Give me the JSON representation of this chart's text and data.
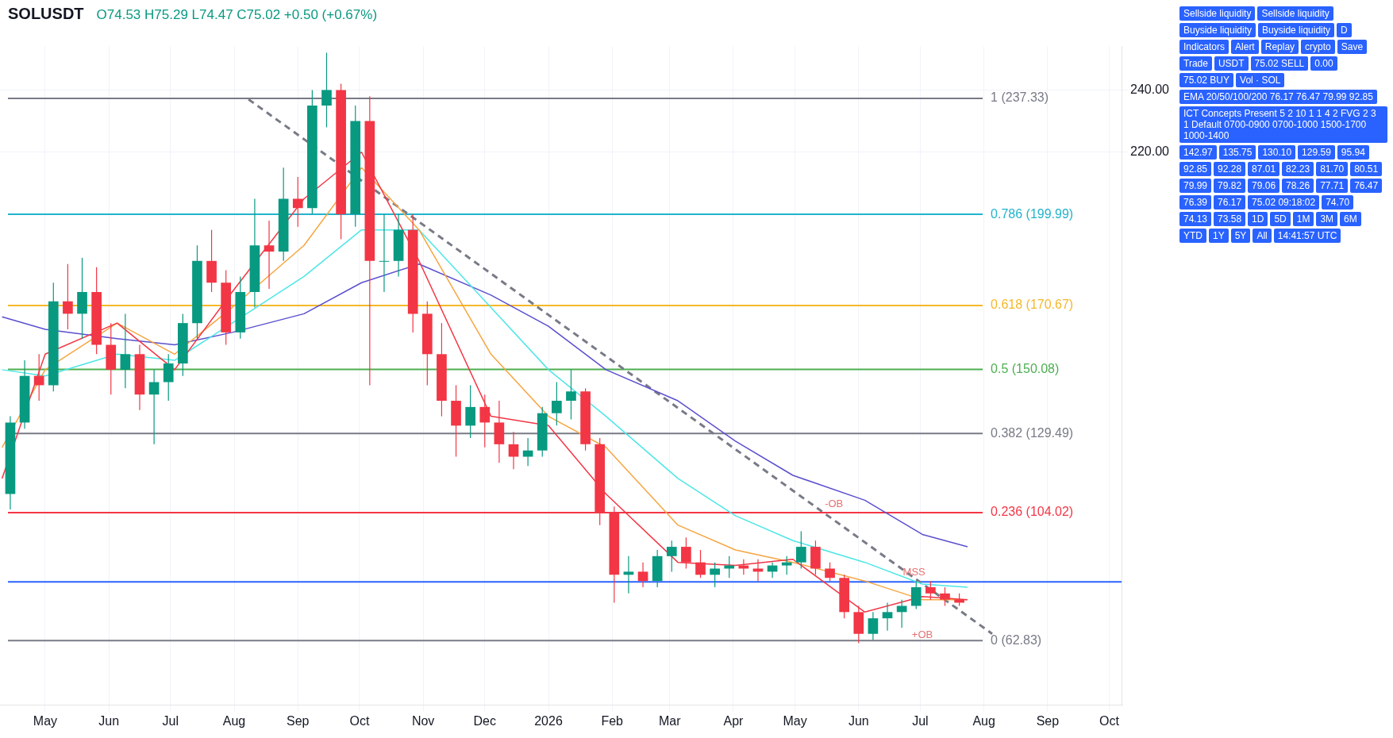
{
  "chart_data": {
    "type": "candlestick",
    "title": "SOLUSDT",
    "subtitle": "O74.53 H75.29 L74.47 C75.02 +0.50 (+0.67%)",
    "x": [
      "2025-04-14",
      "2025-04-21",
      "2025-04-28",
      "2025-05-05",
      "2025-05-12",
      "2025-05-19",
      "2025-05-26",
      "2025-06-02",
      "2025-06-09",
      "2025-06-16",
      "2025-06-23",
      "2025-06-30",
      "2025-07-07",
      "2025-07-14",
      "2025-07-21",
      "2025-07-28",
      "2025-08-04",
      "2025-08-11",
      "2025-08-18",
      "2025-08-25",
      "2025-09-01",
      "2025-09-08",
      "2025-09-15",
      "2025-09-22",
      "2025-09-29",
      "2025-10-06",
      "2025-10-13",
      "2025-10-20",
      "2025-10-27",
      "2025-11-03",
      "2025-11-10",
      "2025-11-17",
      "2025-11-24",
      "2025-12-01",
      "2025-12-08",
      "2025-12-15",
      "2025-12-22",
      "2025-12-29",
      "2026-01-05",
      "2026-01-12",
      "2026-01-19",
      "2026-01-26",
      "2026-02-02",
      "2026-02-09",
      "2026-02-16",
      "2026-02-23",
      "2026-03-02",
      "2026-03-09",
      "2026-03-16",
      "2026-03-23",
      "2026-03-30",
      "2026-04-06",
      "2026-04-13",
      "2026-04-20",
      "2026-04-27",
      "2026-05-04",
      "2026-05-11",
      "2026-05-18",
      "2026-05-25",
      "2026-06-01",
      "2026-06-08",
      "2026-06-15",
      "2026-06-22",
      "2026-06-29",
      "2026-07-06",
      "2026-07-13",
      "2026-07-20"
    ],
    "ohlc": [
      [
        110,
        135,
        105,
        133
      ],
      [
        133,
        153,
        131,
        148
      ],
      [
        148,
        155,
        140,
        145
      ],
      [
        145,
        178,
        143,
        172
      ],
      [
        172,
        184,
        163,
        168
      ],
      [
        168,
        186,
        160,
        175
      ],
      [
        175,
        183,
        155,
        158
      ],
      [
        158,
        165,
        142,
        150
      ],
      [
        150,
        168,
        144,
        155
      ],
      [
        155,
        158,
        137,
        142
      ],
      [
        142,
        150,
        126,
        146
      ],
      [
        146,
        155,
        140,
        152
      ],
      [
        152,
        168,
        148,
        165
      ],
      [
        165,
        190,
        160,
        185
      ],
      [
        185,
        195,
        175,
        178
      ],
      [
        178,
        182,
        158,
        162
      ],
      [
        162,
        180,
        160,
        175
      ],
      [
        175,
        205,
        170,
        190
      ],
      [
        190,
        198,
        176,
        188
      ],
      [
        188,
        215,
        185,
        205
      ],
      [
        205,
        212,
        196,
        202
      ],
      [
        202,
        240,
        200,
        235
      ],
      [
        235,
        252,
        228,
        240
      ],
      [
        240,
        242,
        192,
        200
      ],
      [
        200,
        235,
        196,
        230
      ],
      [
        230,
        238,
        145,
        185
      ],
      [
        185,
        200,
        175,
        185
      ],
      [
        185,
        200,
        180,
        195
      ],
      [
        195,
        200,
        162,
        168
      ],
      [
        168,
        172,
        145,
        155
      ],
      [
        155,
        165,
        135,
        140
      ],
      [
        140,
        145,
        122,
        132
      ],
      [
        132,
        145,
        128,
        138
      ],
      [
        138,
        142,
        125,
        133
      ],
      [
        133,
        140,
        120,
        126
      ],
      [
        126,
        130,
        118,
        122
      ],
      [
        122,
        128,
        119,
        124
      ],
      [
        124,
        138,
        122,
        136
      ],
      [
        136,
        146,
        132,
        140
      ],
      [
        140,
        150,
        134,
        143
      ],
      [
        143,
        144,
        124,
        126
      ],
      [
        126,
        128,
        100,
        104
      ],
      [
        104,
        106,
        75,
        84
      ],
      [
        84,
        90,
        78,
        85
      ],
      [
        85,
        88,
        80,
        82
      ],
      [
        82,
        92,
        80,
        90
      ],
      [
        90,
        95,
        85,
        93
      ],
      [
        93,
        96,
        86,
        88
      ],
      [
        88,
        92,
        83,
        84
      ],
      [
        84,
        88,
        80,
        86
      ],
      [
        86,
        90,
        83,
        87
      ],
      [
        87,
        89,
        84,
        86
      ],
      [
        86,
        89,
        82,
        85
      ],
      [
        85,
        88,
        83,
        87
      ],
      [
        87,
        90,
        84,
        88
      ],
      [
        88,
        98,
        86,
        93
      ],
      [
        93,
        95,
        84,
        86
      ],
      [
        86,
        88,
        82,
        83
      ],
      [
        83,
        84,
        70,
        72
      ],
      [
        72,
        74,
        62,
        65
      ],
      [
        65,
        72,
        63,
        70
      ],
      [
        70,
        75,
        66,
        72
      ],
      [
        72,
        76,
        67,
        74
      ],
      [
        74,
        82,
        73,
        80
      ],
      [
        80,
        82,
        76,
        78
      ],
      [
        78,
        80,
        74,
        76
      ],
      [
        76,
        78,
        74,
        75.02
      ]
    ],
    "series": [
      {
        "type": "line",
        "color": "#f23645",
        "x": [
          "2025-04-10",
          "2025-05-01",
          "2025-06-05",
          "2025-07-03",
          "2025-07-31",
          "2025-09-04",
          "2025-10-02",
          "2025-10-30",
          "2025-12-04",
          "2026-01-01",
          "2026-01-29",
          "2026-03-05",
          "2026-04-02",
          "2026-04-30",
          "2026-06-04",
          "2026-07-02",
          "2026-07-24"
        ],
        "values": [
          115,
          155,
          165,
          150,
          175,
          205,
          220,
          185,
          135,
          132,
          110,
          88,
          87,
          89,
          72,
          77,
          76
        ]
      },
      {
        "type": "line",
        "color": "#f7a541",
        "x": [
          "2025-04-10",
          "2025-05-01",
          "2025-06-05",
          "2025-07-03",
          "2025-07-31",
          "2025-09-04",
          "2025-10-02",
          "2025-10-30",
          "2025-12-04",
          "2026-01-01",
          "2026-01-29",
          "2026-03-05",
          "2026-04-02",
          "2026-04-30",
          "2026-06-04",
          "2026-07-02",
          "2026-07-24"
        ],
        "values": [
          125,
          150,
          165,
          155,
          170,
          190,
          215,
          195,
          155,
          135,
          125,
          100,
          92,
          88,
          82,
          76,
          76
        ]
      },
      {
        "type": "line",
        "color": "#4ee6e6",
        "x": [
          "2025-04-10",
          "2025-05-01",
          "2025-06-05",
          "2025-07-03",
          "2025-07-31",
          "2025-09-04",
          "2025-10-02",
          "2025-10-30",
          "2025-12-04",
          "2026-01-01",
          "2026-01-29",
          "2026-03-05",
          "2026-04-02",
          "2026-04-30",
          "2026-06-04",
          "2026-07-02",
          "2026-07-24"
        ],
        "values": [
          150,
          148,
          155,
          153,
          165,
          180,
          195,
          195,
          170,
          150,
          135,
          115,
          103,
          95,
          88,
          81,
          80
        ]
      },
      {
        "type": "line",
        "color": "#5b4fcf",
        "x": [
          "2025-04-10",
          "2025-05-01",
          "2025-06-05",
          "2025-07-03",
          "2025-07-31",
          "2025-09-04",
          "2025-10-02",
          "2025-10-30",
          "2025-12-04",
          "2026-01-01",
          "2026-01-29",
          "2026-03-05",
          "2026-04-02",
          "2026-04-30",
          "2026-06-04",
          "2026-07-02",
          "2026-07-24"
        ],
        "values": [
          167,
          163,
          160,
          158,
          162,
          168,
          178,
          184,
          174,
          164,
          150,
          140,
          127,
          116,
          108,
          97,
          93
        ]
      },
      {
        "type": "line",
        "color": "#787b86",
        "line_style": "dashed",
        "x": [
          "2025-08-08",
          "2026-08-05"
        ],
        "values": [
          237,
          65
        ]
      }
    ],
    "ref_lines": [
      {
        "axis": "y",
        "value": 237.33,
        "label": "1 (237.33)",
        "color": "#787b86"
      },
      {
        "axis": "y",
        "value": 199.99,
        "label": "0.786 (199.99)",
        "color": "#22b3cc"
      },
      {
        "axis": "y",
        "value": 170.67,
        "label": "0.618 (170.67)",
        "color": "#f5b829"
      },
      {
        "axis": "y",
        "value": 150.08,
        "label": "0.5 (150.08)",
        "color": "#4caf50"
      },
      {
        "axis": "y",
        "value": 129.49,
        "label": "0.382 (129.49)",
        "color": "#787b86"
      },
      {
        "axis": "y",
        "value": 104.02,
        "label": "0.236 (104.02)",
        "color": "#f23645"
      },
      {
        "axis": "y",
        "value": 62.83,
        "label": "0 (62.83)",
        "color": "#787b86"
      },
      {
        "axis": "y",
        "value": 81.7,
        "label": null,
        "color": "#2962ff"
      }
    ],
    "annotations": [
      "Sellside liquidity",
      "Sellside liquidity",
      "Buyside liquidity",
      "Buyside liquidity",
      {
        "text": "-OB",
        "x": "2026-05-20",
        "y": 104
      },
      {
        "text": "MSS",
        "x": "2026-06-28",
        "y": 82
      },
      {
        "text": "+OB",
        "x": "2026-07-02",
        "y": 62
      },
      "D",
      "Indicators",
      "Alert",
      "Replay",
      "crypto",
      "Save",
      "Trade",
      "USDT",
      "75.02 SELL",
      "0.00",
      "75.02 BUY",
      "Vol · SOL",
      "EMA 20/50/100/200 76.17 76.47 79.99 92.85",
      "ICT Concepts Present 5 2 10 1 1 4 2 FVG 2 3 1 Default 0700-0900 0700-1000 1500-1700 1000-1400",
      "142.97",
      "135.75",
      "130.10",
      "129.59",
      "95.94",
      "92.85",
      "92.28",
      "87.01",
      "82.23",
      "81.70",
      "80.51",
      "79.99",
      "79.82",
      "79.06",
      "78.26",
      "77.71",
      "76.47",
      "76.39",
      "76.17",
      "75.02 09:18:02",
      "74.70",
      "74.13",
      "73.58",
      "1D",
      "5D",
      "1M",
      "3M",
      "6M",
      "YTD",
      "1Y",
      "5Y",
      "All",
      "14:41:57 UTC"
    ],
    "xlim": [
      "2025-04-09",
      "2026-10-07"
    ],
    "xticks": [
      {
        "value": "2025-05-01",
        "label": "May"
      },
      {
        "value": "2025-06-01",
        "label": "Jun"
      },
      {
        "value": "2025-07-01",
        "label": "Jul"
      },
      {
        "value": "2025-08-01",
        "label": "Aug"
      },
      {
        "value": "2025-09-01",
        "label": "Sep"
      },
      {
        "value": "2025-10-01",
        "label": "Oct"
      },
      {
        "value": "2025-11-01",
        "label": "Nov"
      },
      {
        "value": "2025-12-01",
        "label": "Dec"
      },
      {
        "value": "2026-01-01",
        "label": "2026"
      },
      {
        "value": "2026-02-01",
        "label": "Feb"
      },
      {
        "value": "2026-03-01",
        "label": "Mar"
      },
      {
        "value": "2026-04-01",
        "label": "Apr"
      },
      {
        "value": "2026-05-01",
        "label": "May"
      },
      {
        "value": "2026-06-01",
        "label": "Jun"
      },
      {
        "value": "2026-07-01",
        "label": "Jul"
      },
      {
        "value": "2026-08-01",
        "label": "Aug"
      },
      {
        "value": "2026-09-01",
        "label": "Sep"
      },
      {
        "value": "2026-10-01",
        "label": "Oct"
      }
    ],
    "ylim": [
      42,
      254
    ],
    "yticks": [
      {
        "value": 240,
        "label": "240.00"
      },
      {
        "value": 220,
        "label": "220.00"
      }
    ],
    "grid": true,
    "legend": false
  }
}
